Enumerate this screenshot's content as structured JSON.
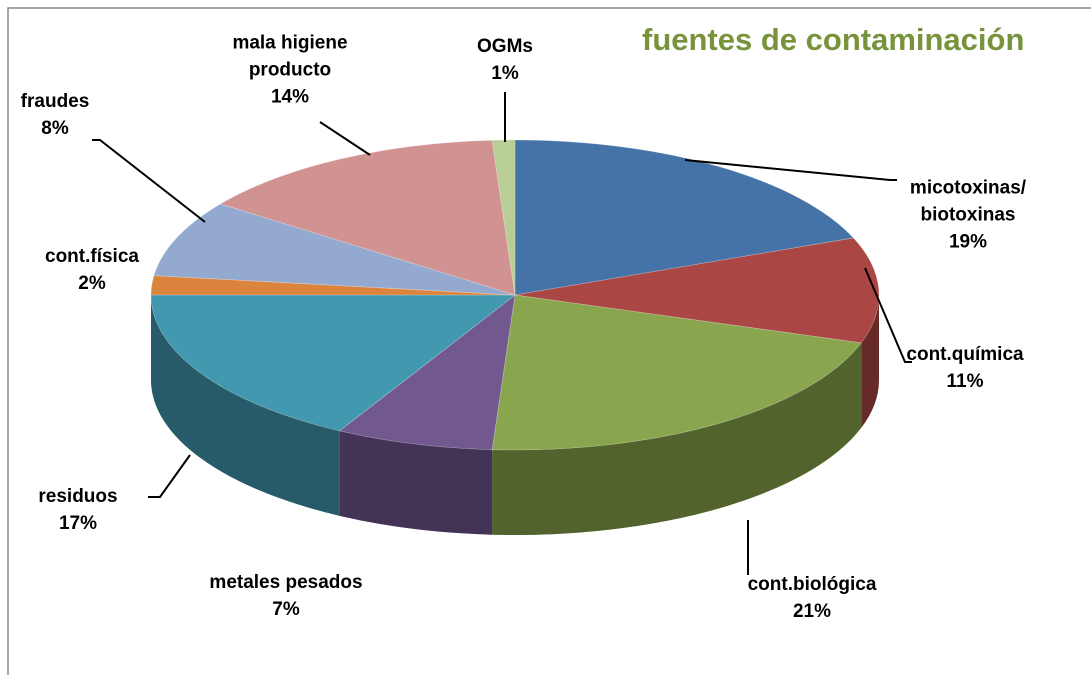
{
  "chart_data": {
    "type": "pie3d",
    "title": "fuentes de contaminación",
    "categories": [
      "micotoxinas/ biotoxinas",
      "cont.química",
      "cont.biológica",
      "metales pesados",
      "residuos",
      "cont.física",
      "fraudes",
      "mala higiene producto",
      "OGMs"
    ],
    "values": [
      19,
      11,
      21,
      7,
      17,
      2,
      8,
      14,
      1
    ],
    "value_labels": [
      "19%",
      "11%",
      "21%",
      "7%",
      "17%",
      "2%",
      "8%",
      "14%",
      "1%"
    ],
    "colors": [
      "#4572a7",
      "#aa4643",
      "#89a54e",
      "#71588f",
      "#4198af",
      "#db843d",
      "#93a9cf",
      "#d19392",
      "#b9cd96"
    ]
  }
}
